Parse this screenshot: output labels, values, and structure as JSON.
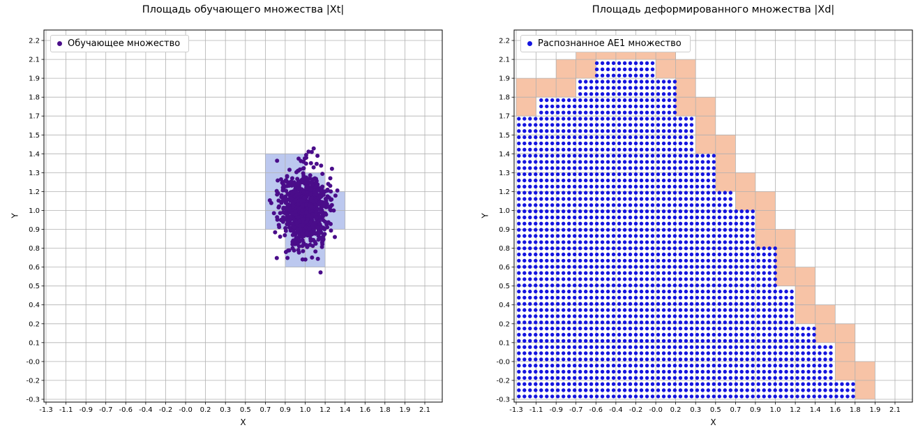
{
  "window": {
    "background": "#ffffff"
  },
  "chart_data": [
    {
      "type": "scatter",
      "title": "Площадь обучающего множества |Xt|",
      "xlabel": "X",
      "ylabel": "Y",
      "grid": true,
      "legend": {
        "position": "upper left",
        "label": "Обучающее множество",
        "marker_color": "#4a0d8a"
      },
      "x_range": [
        -1.3,
        2.1
      ],
      "y_range": [
        -0.3,
        2.2
      ],
      "x_tick_labels": [
        "-1.3",
        "-1.1",
        "-0.9",
        "-0.7",
        "-0.6",
        "-0.4",
        "-0.2",
        "-0.0",
        "0.2",
        "0.3",
        "0.5",
        "0.7",
        "0.9",
        "1.0",
        "1.2",
        "1.4",
        "1.6",
        "1.8",
        "1.9",
        "2.1"
      ],
      "y_tick_labels_top_to_bottom": [
        "2.2",
        "2.1",
        "1.9",
        "1.8",
        "1.7",
        "1.5",
        "1.4",
        "1.3",
        "1.2",
        "1.0",
        "0.9",
        "0.8",
        "0.6",
        "0.5",
        "0.4",
        "0.2",
        "0.1",
        "-0.0",
        "-0.2",
        "-0.3"
      ],
      "cluster": {
        "center": [
          1.02,
          1.02
        ],
        "std": [
          0.1,
          0.125
        ],
        "count": 900,
        "seed": 12,
        "color": "#4a0d8a",
        "dot_radius": 3
      },
      "highlight_cells": {
        "color": "#bcc8ef",
        "rects": [
          {
            "x0": 0.668,
            "y0": 1.279,
            "x1": 1.026,
            "y1": 1.411
          },
          {
            "x0": 0.668,
            "y0": 0.884,
            "x1": 1.205,
            "y1": 1.279
          },
          {
            "x0": 1.205,
            "y0": 0.884,
            "x1": 1.384,
            "y1": 1.147
          },
          {
            "x0": 0.847,
            "y0": 0.621,
            "x1": 1.205,
            "y1": 0.884
          }
        ]
      }
    },
    {
      "type": "scatter",
      "title": "Площадь деформированного множества |Xd|",
      "xlabel": "X",
      "ylabel": "Y",
      "grid": true,
      "legend": {
        "position": "upper left",
        "label": "Распознанное АЕ1 множество",
        "marker_color": "#1414e0"
      },
      "x_range": [
        -1.3,
        2.1
      ],
      "y_range": [
        -0.3,
        2.2
      ],
      "x_tick_labels": [
        "-1.3",
        "-1.1",
        "-0.9",
        "-0.7",
        "-0.6",
        "-0.4",
        "-0.2",
        "-0.0",
        "0.2",
        "0.3",
        "0.5",
        "0.7",
        "0.9",
        "1.0",
        "1.2",
        "1.4",
        "1.6",
        "1.8",
        "1.9",
        "2.1"
      ],
      "y_tick_labels_top_to_bottom": [
        "2.2",
        "2.1",
        "1.9",
        "1.8",
        "1.7",
        "1.5",
        "1.4",
        "1.3",
        "1.2",
        "1.0",
        "0.9",
        "0.8",
        "0.6",
        "0.5",
        "0.4",
        "0.2",
        "0.1",
        "-0.0",
        "-0.2",
        "-0.3"
      ],
      "region": {
        "dot_color": "#1414e0",
        "dot_radius": 2.7,
        "dot_step": [
          0.05,
          0.043
        ],
        "boundary": {
          "left_edge_y": 1.72,
          "plateau_x0": -0.54,
          "plateau_x1": 0.02,
          "plateau_y": 2.1,
          "bottom_right_x": 1.89,
          "bottom_y": -0.3
        },
        "partial_cell_color": "#f7c3a6"
      }
    }
  ]
}
